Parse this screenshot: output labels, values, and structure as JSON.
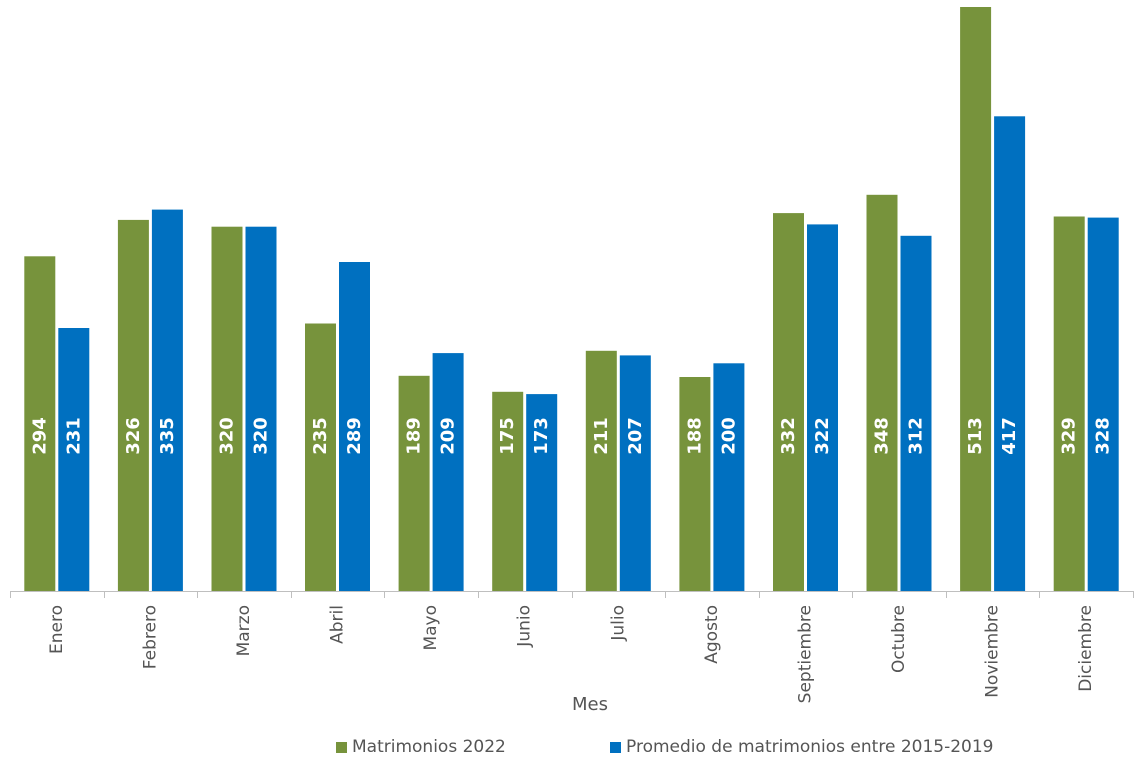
{
  "chart_data": {
    "type": "bar",
    "title": "",
    "xlabel": "Mes",
    "ylabel": "",
    "categories": [
      "Enero",
      "Febrero",
      "Marzo",
      "Abril",
      "Mayo",
      "Junio",
      "Julio",
      "Agosto",
      "Septiembre",
      "Octubre",
      "Noviembre",
      "Diciembre"
    ],
    "series": [
      {
        "name": "Matrimonios 2022",
        "color": "#77933c",
        "values": [
          294,
          326,
          320,
          235,
          189,
          175,
          211,
          188,
          332,
          348,
          513,
          329
        ]
      },
      {
        "name": "Promedio de matrimonios entre 2015-2019",
        "color": "#0070c0",
        "values": [
          231,
          335,
          320,
          289,
          209,
          173,
          207,
          200,
          322,
          312,
          417,
          328
        ]
      }
    ],
    "ylim": [
      0,
      520
    ],
    "grid": false,
    "legend_position": "bottom",
    "data_labels": "rotated-inside-bars"
  }
}
